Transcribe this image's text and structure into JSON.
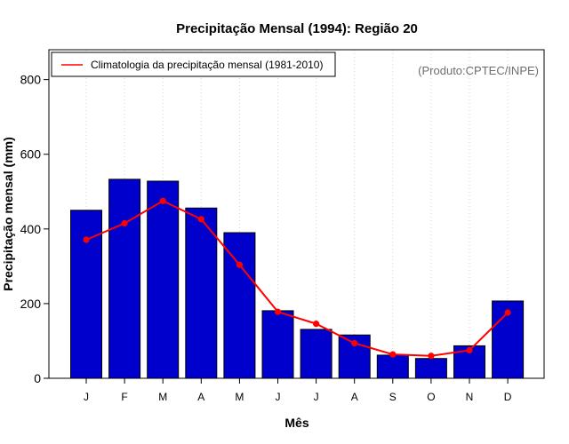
{
  "chart_data": {
    "type": "bar",
    "title": "Precipitação Mensal (1994): Região 20",
    "xlabel": "Mês",
    "ylabel": "Precipitação mensal (mm)",
    "categories": [
      "J",
      "F",
      "M",
      "A",
      "M",
      "J",
      "J",
      "A",
      "S",
      "O",
      "N",
      "D"
    ],
    "ylim": [
      0,
      880
    ],
    "yticks": [
      0,
      200,
      400,
      600,
      800
    ],
    "grid": "vertical dotted",
    "legend_position": "top-left",
    "credit": "(Produto:CPTEC/INPE)",
    "series": [
      {
        "name": "Precipitação mensal 1994",
        "type": "bar",
        "color": "#0000CD",
        "values": [
          450,
          533,
          528,
          456,
          390,
          181,
          131,
          116,
          62,
          53,
          87,
          207
        ]
      },
      {
        "name": "Climatologia da precipitação mensal (1981-2010)",
        "type": "line",
        "color": "#FF0000",
        "values": [
          371,
          415,
          475,
          426,
          304,
          178,
          146,
          94,
          64,
          60,
          75,
          176
        ]
      }
    ]
  }
}
